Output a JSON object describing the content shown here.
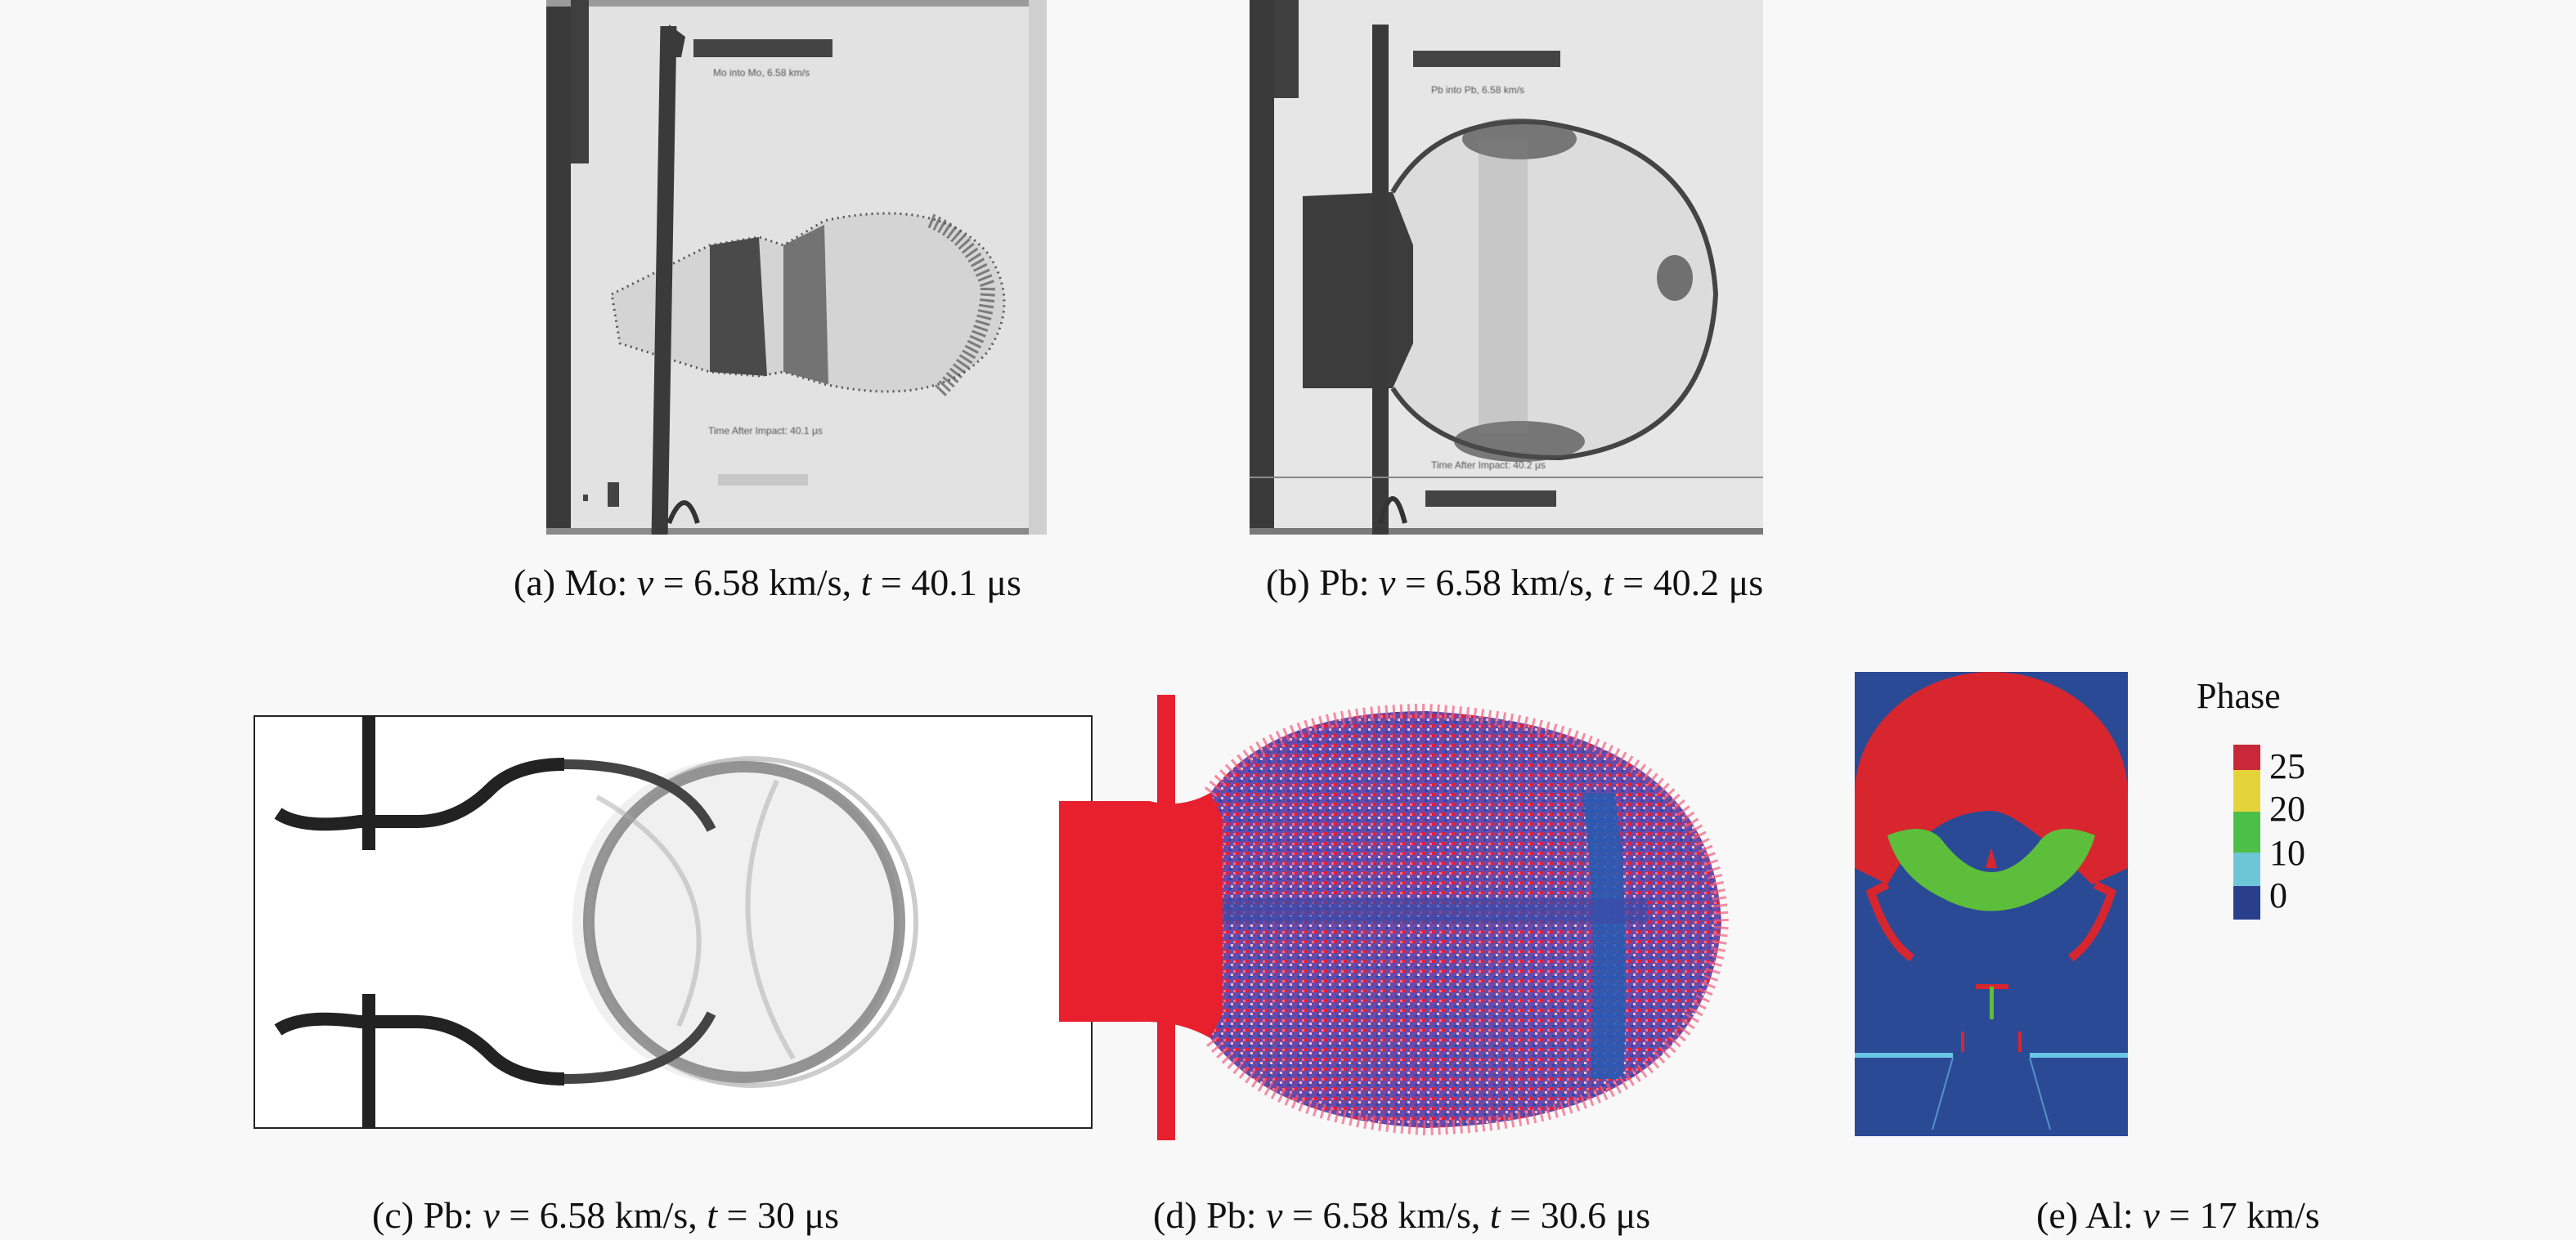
{
  "panels": [
    {
      "id": "a",
      "label": "(a)",
      "material": "Mo:",
      "v_sym": "v",
      "v_val": " = 6.58 km/s, ",
      "t_sym": "t",
      "t_val": " = 40.1 μs",
      "photo_text": [
        "Mo into Mo, 6.58 km/s",
        "Time After Impact: 40.1 μs"
      ]
    },
    {
      "id": "b",
      "label": "(b)",
      "material": "Pb:",
      "v_sym": "v",
      "v_val": " = 6.58 km/s, ",
      "t_sym": "t",
      "t_val": " = 40.2 μs",
      "photo_text": [
        "Pb into Pb, 6.58 km/s",
        "Time After Impact: 40.2 μs"
      ]
    },
    {
      "id": "c",
      "label": "(c)",
      "material": "Pb:",
      "v_sym": "v",
      "v_val": " = 6.58 km/s, ",
      "t_sym": "t",
      "t_val": " = 30 μs"
    },
    {
      "id": "d",
      "label": "(d)",
      "material": "Pb:",
      "v_sym": "v",
      "v_val": " = 6.58 km/s, ",
      "t_sym": "t",
      "t_val": " = 30.6 μs"
    },
    {
      "id": "e",
      "label": "(e)",
      "material": "Al:",
      "v_sym": "v",
      "v_val": " = 17 km/s"
    }
  ],
  "colorbar": {
    "title": "Phase",
    "ticks": [
      "25",
      "20",
      "10",
      "0"
    ],
    "colors": [
      "#c8283a",
      "#e4d43a",
      "#4cbf46",
      "#6cc6d6",
      "#2a3f8c"
    ]
  }
}
